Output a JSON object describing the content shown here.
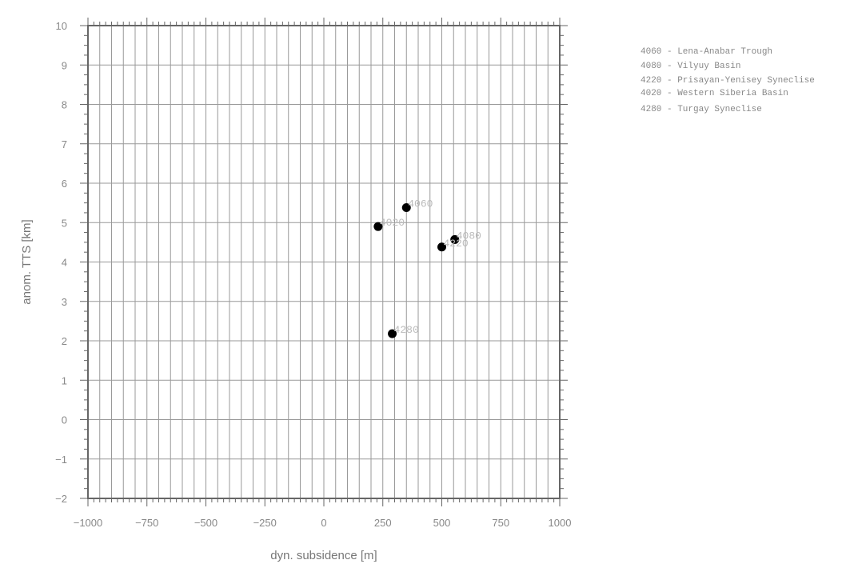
{
  "chart_data": {
    "type": "scatter",
    "xlabel": "dyn. subsidence [m]",
    "ylabel": "anom. TTS [km]",
    "xlim": [
      -1000,
      1000
    ],
    "ylim": [
      -2,
      10
    ],
    "x_ticks": [
      -1000,
      -750,
      -500,
      -250,
      0,
      250,
      500,
      750,
      1000
    ],
    "y_ticks": [
      -2,
      -1,
      0,
      1,
      2,
      3,
      4,
      5,
      6,
      7,
      8,
      9,
      10
    ],
    "x_tick_labels": [
      "−1000",
      "−750",
      "−500",
      "−250",
      "0",
      "250",
      "500",
      "750",
      "1000"
    ],
    "y_tick_labels": [
      "−2",
      "−1",
      "0",
      "1",
      "2",
      "3",
      "4",
      "5",
      "6",
      "7",
      "8",
      "9",
      "10"
    ],
    "grid": true,
    "legend_position": "top-right outside",
    "point_color": "#000000",
    "points": [
      {
        "id": "4060",
        "x": 350,
        "y": 5.38
      },
      {
        "id": "4080",
        "x": 555,
        "y": 4.57
      },
      {
        "id": "4220",
        "x": 500,
        "y": 4.38
      },
      {
        "id": "4020",
        "x": 230,
        "y": 4.9
      },
      {
        "id": "4280",
        "x": 290,
        "y": 2.18
      }
    ],
    "legend": [
      "4060 - Lena-Anabar Trough",
      "4080 - Vilyuy Basin",
      "4220 - Prisayan-Yenisey Syneclise",
      "4020 - Western Siberia Basin",
      "4280 - Turgay Syneclise"
    ]
  }
}
